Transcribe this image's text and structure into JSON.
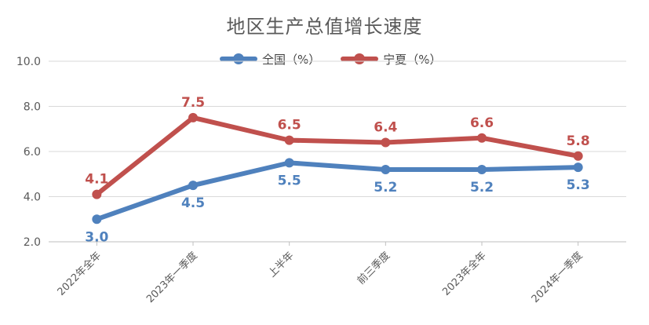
{
  "chart_data": {
    "type": "line",
    "title": "地区生产总值增长速度",
    "categories": [
      "2022年全年",
      "2023年一季度",
      "上半年",
      "前三季度",
      "2023年全年",
      "2024年一季度"
    ],
    "ylim": [
      2.0,
      10.0
    ],
    "yticks": [
      "2.0",
      "4.0",
      "6.0",
      "8.0",
      "10.0"
    ],
    "grid": true,
    "legend_position": "top-center",
    "series": [
      {
        "name": "全国（%）",
        "color": "#4f81bd",
        "values": [
          3.0,
          4.5,
          5.5,
          5.2,
          5.2,
          5.3
        ],
        "labels": [
          "3.0",
          "4.5",
          "5.5",
          "5.2",
          "5.2",
          "5.3"
        ]
      },
      {
        "name": "宁夏（%）",
        "color": "#c0504d",
        "values": [
          4.1,
          7.5,
          6.5,
          6.4,
          6.6,
          5.8
        ],
        "labels": [
          "4.1",
          "7.5",
          "6.5",
          "6.4",
          "6.6",
          "5.8"
        ]
      }
    ]
  }
}
